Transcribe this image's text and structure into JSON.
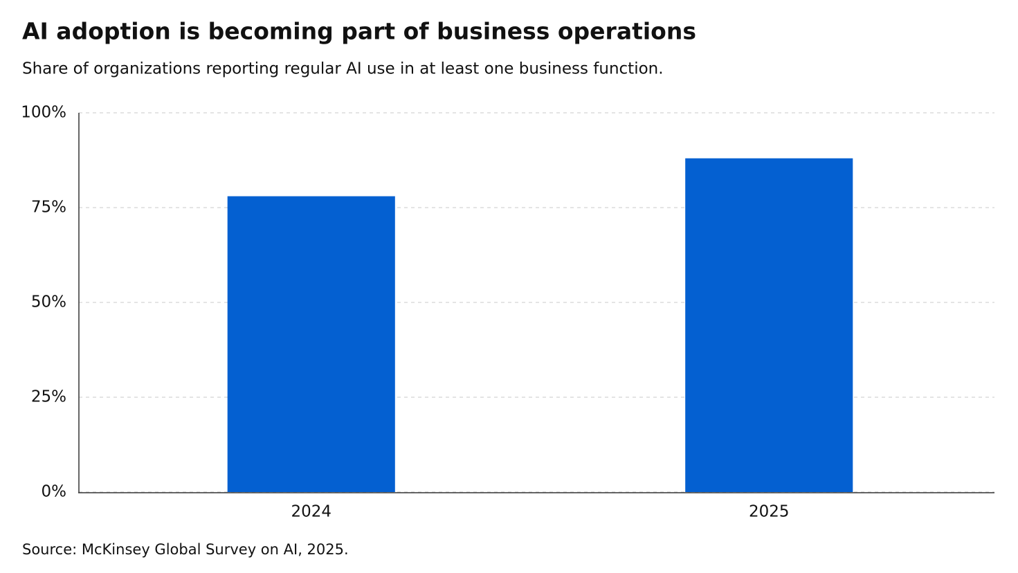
{
  "chart_data": {
    "type": "bar",
    "title": "AI adoption is becoming part of business operations",
    "subtitle": "Share of organizations reporting regular AI use in at least one business function.",
    "source": "Source: McKinsey Global Survey on AI, 2025.",
    "categories": [
      "2024",
      "2025"
    ],
    "values": [
      78,
      88
    ],
    "color": "#0460d1",
    "ylim": [
      0,
      100
    ],
    "yticks": [
      {
        "value": 0,
        "label": "0%"
      },
      {
        "value": 25,
        "label": "25%"
      },
      {
        "value": 50,
        "label": "50%"
      },
      {
        "value": 75,
        "label": "75%"
      },
      {
        "value": 100,
        "label": "100%"
      }
    ],
    "grid": true
  }
}
